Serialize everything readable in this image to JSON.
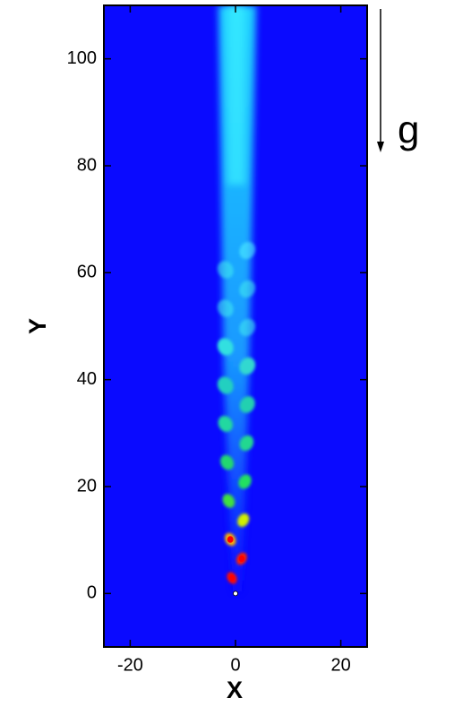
{
  "chart_data": {
    "type": "contour",
    "xlabel": "X",
    "ylabel": "Y",
    "xlim": [
      -25,
      25
    ],
    "ylim": [
      -10,
      110
    ],
    "xticks": [
      -20,
      0,
      20
    ],
    "yticks": [
      0,
      20,
      40,
      60,
      80,
      100
    ],
    "annotation": "g",
    "background_color": "#0a0aff"
  }
}
